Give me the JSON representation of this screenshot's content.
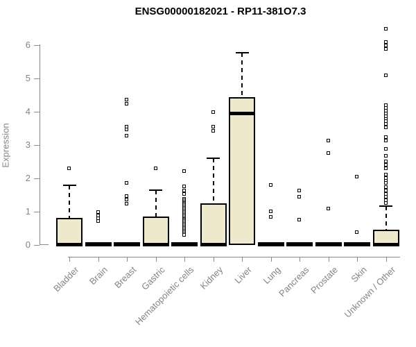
{
  "title": "ENSG00000182021 - RP11-381O7.3",
  "colors": {
    "box_fill": "#EEE8CD",
    "box_border": "#000000",
    "axis": "#888888",
    "axis_text": "#848484",
    "title_text": "#000000"
  },
  "chart_data": {
    "type": "boxplot",
    "title": "ENSG00000182021 - RP11-381O7.3",
    "xlabel": "",
    "ylabel": "Expression",
    "ylim": [
      0,
      6.6
    ],
    "yticks": [
      0,
      1,
      2,
      3,
      4,
      5,
      6
    ],
    "grid": false,
    "legend": false,
    "categories": [
      "Bladder",
      "Brain",
      "Breast",
      "Gastric",
      "Hematopoietic cells",
      "Kidney",
      "Liver",
      "Lung",
      "Pancreas",
      "Prostate",
      "Skin",
      "Unknown / Other"
    ],
    "boxes": [
      {
        "category": "Bladder",
        "collapsed": false,
        "q1": 0,
        "median": 0.02,
        "q3": 0.82,
        "whisker_high": 1.8,
        "outliers": [
          2.29
        ]
      },
      {
        "category": "Brain",
        "collapsed": true,
        "median": 0.02,
        "outliers": [
          0.97,
          0.88,
          0.8,
          0.71
        ]
      },
      {
        "category": "Breast",
        "collapsed": true,
        "median": 0.02,
        "outliers": [
          4.35,
          4.22,
          3.55,
          3.45,
          3.27,
          1.85,
          1.46,
          1.35,
          1.22
        ]
      },
      {
        "category": "Gastric",
        "collapsed": false,
        "q1": 0,
        "median": 0.02,
        "q3": 0.86,
        "whisker_high": 1.64,
        "outliers": [
          2.29
        ]
      },
      {
        "category": "Hematopoietic cells",
        "collapsed": true,
        "median": 0.02,
        "outliers": [
          2.21,
          1.76,
          1.63,
          1.53,
          1.38,
          1.34,
          1.3,
          1.26,
          1.22,
          1.18,
          1.14,
          1.1,
          1.06,
          1.02,
          0.98,
          0.94,
          0.9,
          0.86,
          0.82,
          0.78,
          0.74,
          0.7,
          0.66,
          0.62,
          0.58,
          0.54,
          0.5,
          0.46,
          0.42,
          0.38,
          0.34,
          0.3
        ],
        "note": "dense stack of overlapping points from ~0.3 to ~1.4"
      },
      {
        "category": "Kidney",
        "collapsed": false,
        "q1": 0,
        "median": 0.02,
        "q3": 1.26,
        "whisker_high": 2.6,
        "outliers": [
          3.97,
          3.54,
          3.42
        ]
      },
      {
        "category": "Liver",
        "collapsed": false,
        "q1": 0,
        "median": 3.94,
        "q3": 4.44,
        "whisker_high": 5.77,
        "outliers": []
      },
      {
        "category": "Lung",
        "collapsed": true,
        "median": 0.02,
        "outliers": [
          1.8,
          1.0,
          0.84
        ]
      },
      {
        "category": "Pancreas",
        "collapsed": true,
        "median": 0.02,
        "outliers": [
          1.63,
          1.44,
          0.76
        ]
      },
      {
        "category": "Prostate",
        "collapsed": true,
        "median": 0.02,
        "outliers": [
          3.13,
          2.76,
          1.08
        ]
      },
      {
        "category": "Skin",
        "collapsed": true,
        "median": 0.02,
        "outliers": [
          2.05,
          0.38
        ]
      },
      {
        "category": "Unknown / Other",
        "collapsed": false,
        "q1": 0,
        "median": 0.02,
        "q3": 0.45,
        "whisker_high": 1.17,
        "outliers": [
          6.47,
          6.08,
          5.97,
          5.88,
          5.08,
          4.18,
          4.1,
          4.02,
          3.94,
          3.86,
          3.78,
          3.7,
          3.62,
          3.52,
          3.22,
          3.13,
          2.88,
          2.67,
          2.5,
          2.4,
          2.3,
          2.11,
          2.0,
          1.92,
          1.85,
          1.73,
          1.63,
          1.52,
          1.43,
          1.33,
          1.25
        ]
      }
    ]
  }
}
